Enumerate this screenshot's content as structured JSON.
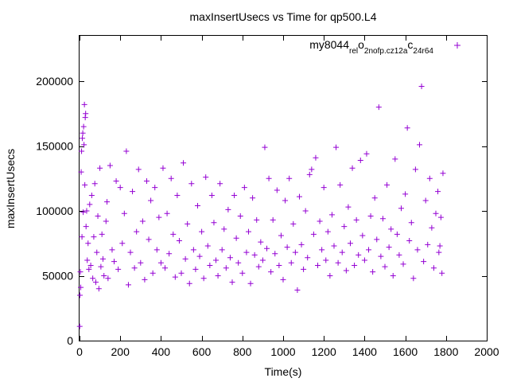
{
  "chart_data": {
    "type": "scatter",
    "title": "maxInsertUsecs vs Time for qp500.L4",
    "xlabel": "Time(s)",
    "ylabel": "maxInsertUsecs",
    "xlim": [
      0,
      2000
    ],
    "ylim": [
      0,
      235000
    ],
    "x_ticks": [
      "0",
      "200",
      "400",
      "600",
      "800",
      "1000",
      "1200",
      "1400",
      "1600",
      "1800",
      "2000"
    ],
    "y_ticks": [
      "0",
      "50000",
      "100000",
      "150000",
      "200000"
    ],
    "x_tick_values": [
      0,
      200,
      400,
      600,
      800,
      1000,
      1200,
      1400,
      1600,
      1800,
      2000
    ],
    "y_tick_values": [
      0,
      50000,
      100000,
      150000,
      200000
    ],
    "grid": false,
    "legend_position": "top-right",
    "series": [
      {
        "name": "my8044_rel_o2nofp.cz12a_c24r64",
        "legend_parts": [
          {
            "text": "my8044",
            "sub": false
          },
          {
            "text": "rel",
            "sub": true
          },
          {
            "text": "o",
            "sub": false
          },
          {
            "text": "2nofp.cz12a",
            "sub": true
          },
          {
            "text": "c",
            "sub": false
          },
          {
            "text": "24r64",
            "sub": true
          }
        ],
        "color": "#9400d3",
        "marker": "+",
        "points": [
          [
            1,
            11000
          ],
          [
            2,
            35000
          ],
          [
            4,
            53000
          ],
          [
            6,
            41000
          ],
          [
            8,
            130000
          ],
          [
            10,
            146000
          ],
          [
            12,
            80000
          ],
          [
            14,
            156000
          ],
          [
            16,
            160000
          ],
          [
            18,
            99000
          ],
          [
            20,
            165000
          ],
          [
            22,
            151000
          ],
          [
            24,
            182000
          ],
          [
            26,
            120000
          ],
          [
            28,
            172000
          ],
          [
            30,
            175000
          ],
          [
            32,
            88000
          ],
          [
            35,
            100000
          ],
          [
            38,
            62000
          ],
          [
            42,
            75000
          ],
          [
            46,
            55000
          ],
          [
            50,
            105000
          ],
          [
            55,
            58000
          ],
          [
            60,
            112000
          ],
          [
            65,
            48000
          ],
          [
            70,
            80000
          ],
          [
            75,
            121000
          ],
          [
            80,
            45000
          ],
          [
            85,
            68000
          ],
          [
            90,
            96000
          ],
          [
            95,
            40000
          ],
          [
            100,
            133000
          ],
          [
            105,
            57000
          ],
          [
            110,
            82000
          ],
          [
            115,
            63000
          ],
          [
            120,
            50000
          ],
          [
            130,
            92000
          ],
          [
            135,
            107000
          ],
          [
            140,
            48000
          ],
          [
            150,
            135000
          ],
          [
            160,
            70000
          ],
          [
            170,
            61000
          ],
          [
            180,
            123000
          ],
          [
            190,
            55000
          ],
          [
            200,
            118000
          ],
          [
            210,
            75000
          ],
          [
            220,
            98000
          ],
          [
            230,
            146000
          ],
          [
            240,
            43000
          ],
          [
            250,
            68000
          ],
          [
            260,
            115000
          ],
          [
            270,
            56000
          ],
          [
            280,
            84000
          ],
          [
            290,
            132000
          ],
          [
            300,
            60000
          ],
          [
            310,
            92000
          ],
          [
            320,
            47000
          ],
          [
            330,
            123000
          ],
          [
            340,
            78000
          ],
          [
            350,
            108000
          ],
          [
            360,
            52000
          ],
          [
            370,
            118000
          ],
          [
            380,
            70000
          ],
          [
            390,
            95000
          ],
          [
            400,
            60000
          ],
          [
            410,
            133000
          ],
          [
            420,
            56000
          ],
          [
            430,
            98000
          ],
          [
            440,
            67000
          ],
          [
            450,
            125000
          ],
          [
            460,
            82000
          ],
          [
            470,
            49000
          ],
          [
            480,
            112000
          ],
          [
            490,
            77000
          ],
          [
            500,
            52000
          ],
          [
            510,
            137000
          ],
          [
            520,
            63000
          ],
          [
            530,
            90000
          ],
          [
            540,
            44000
          ],
          [
            550,
            121000
          ],
          [
            560,
            70000
          ],
          [
            570,
            55000
          ],
          [
            580,
            104000
          ],
          [
            590,
            65000
          ],
          [
            600,
            84000
          ],
          [
            610,
            48000
          ],
          [
            620,
            126000
          ],
          [
            630,
            73000
          ],
          [
            640,
            58000
          ],
          [
            650,
            112000
          ],
          [
            660,
            91000
          ],
          [
            670,
            62000
          ],
          [
            680,
            50000
          ],
          [
            690,
            121000
          ],
          [
            700,
            70000
          ],
          [
            710,
            86000
          ],
          [
            720,
            56000
          ],
          [
            730,
            101000
          ],
          [
            740,
            64000
          ],
          [
            750,
            45000
          ],
          [
            760,
            112000
          ],
          [
            770,
            79000
          ],
          [
            780,
            60000
          ],
          [
            790,
            96000
          ],
          [
            800,
            52000
          ],
          [
            810,
            118000
          ],
          [
            820,
            68000
          ],
          [
            830,
            84000
          ],
          [
            840,
            44000
          ],
          [
            850,
            110000
          ],
          [
            860,
            66000
          ],
          [
            870,
            93000
          ],
          [
            880,
            57000
          ],
          [
            890,
            76000
          ],
          [
            900,
            62000
          ],
          [
            910,
            149000
          ],
          [
            920,
            71000
          ],
          [
            930,
            125000
          ],
          [
            940,
            53000
          ],
          [
            950,
            93000
          ],
          [
            960,
            67000
          ],
          [
            970,
            116000
          ],
          [
            980,
            58000
          ],
          [
            990,
            81000
          ],
          [
            1000,
            47000
          ],
          [
            1010,
            108000
          ],
          [
            1020,
            72000
          ],
          [
            1030,
            125000
          ],
          [
            1040,
            60000
          ],
          [
            1050,
            90000
          ],
          [
            1060,
            68000
          ],
          [
            1070,
            39000
          ],
          [
            1080,
            111000
          ],
          [
            1090,
            74000
          ],
          [
            1100,
            55000
          ],
          [
            1110,
            100000
          ],
          [
            1120,
            64000
          ],
          [
            1130,
            128000
          ],
          [
            1140,
            132000
          ],
          [
            1150,
            82000
          ],
          [
            1160,
            141000
          ],
          [
            1170,
            58000
          ],
          [
            1180,
            92000
          ],
          [
            1190,
            70000
          ],
          [
            1200,
            118000
          ],
          [
            1210,
            62000
          ],
          [
            1220,
            84000
          ],
          [
            1230,
            50000
          ],
          [
            1240,
            97000
          ],
          [
            1250,
            73000
          ],
          [
            1260,
            149000
          ],
          [
            1270,
            60000
          ],
          [
            1280,
            120000
          ],
          [
            1290,
            68000
          ],
          [
            1300,
            88000
          ],
          [
            1310,
            54000
          ],
          [
            1320,
            103000
          ],
          [
            1330,
            75000
          ],
          [
            1340,
            133000
          ],
          [
            1350,
            58000
          ],
          [
            1360,
            93000
          ],
          [
            1370,
            66000
          ],
          [
            1380,
            139000
          ],
          [
            1390,
            81000
          ],
          [
            1400,
            62000
          ],
          [
            1410,
            144000
          ],
          [
            1420,
            70000
          ],
          [
            1430,
            96000
          ],
          [
            1440,
            53000
          ],
          [
            1450,
            110000
          ],
          [
            1460,
            78000
          ],
          [
            1470,
            180000
          ],
          [
            1480,
            65000
          ],
          [
            1490,
            94000
          ],
          [
            1500,
            57000
          ],
          [
            1510,
            120000
          ],
          [
            1520,
            72000
          ],
          [
            1530,
            86000
          ],
          [
            1540,
            50000
          ],
          [
            1550,
            140000
          ],
          [
            1560,
            82000
          ],
          [
            1570,
            66000
          ],
          [
            1580,
            102000
          ],
          [
            1590,
            59000
          ],
          [
            1600,
            113000
          ],
          [
            1610,
            164000
          ],
          [
            1620,
            77000
          ],
          [
            1630,
            91000
          ],
          [
            1640,
            48000
          ],
          [
            1650,
            132000
          ],
          [
            1660,
            70000
          ],
          [
            1670,
            151000
          ],
          [
            1680,
            196000
          ],
          [
            1690,
            61000
          ],
          [
            1700,
            108000
          ],
          [
            1710,
            74000
          ],
          [
            1720,
            125000
          ],
          [
            1730,
            87000
          ],
          [
            1740,
            56000
          ],
          [
            1750,
            98000
          ],
          [
            1760,
            115000
          ],
          [
            1765,
            68000
          ],
          [
            1770,
            73000
          ],
          [
            1775,
            95000
          ],
          [
            1780,
            52000
          ],
          [
            1785,
            129000
          ]
        ]
      }
    ]
  }
}
